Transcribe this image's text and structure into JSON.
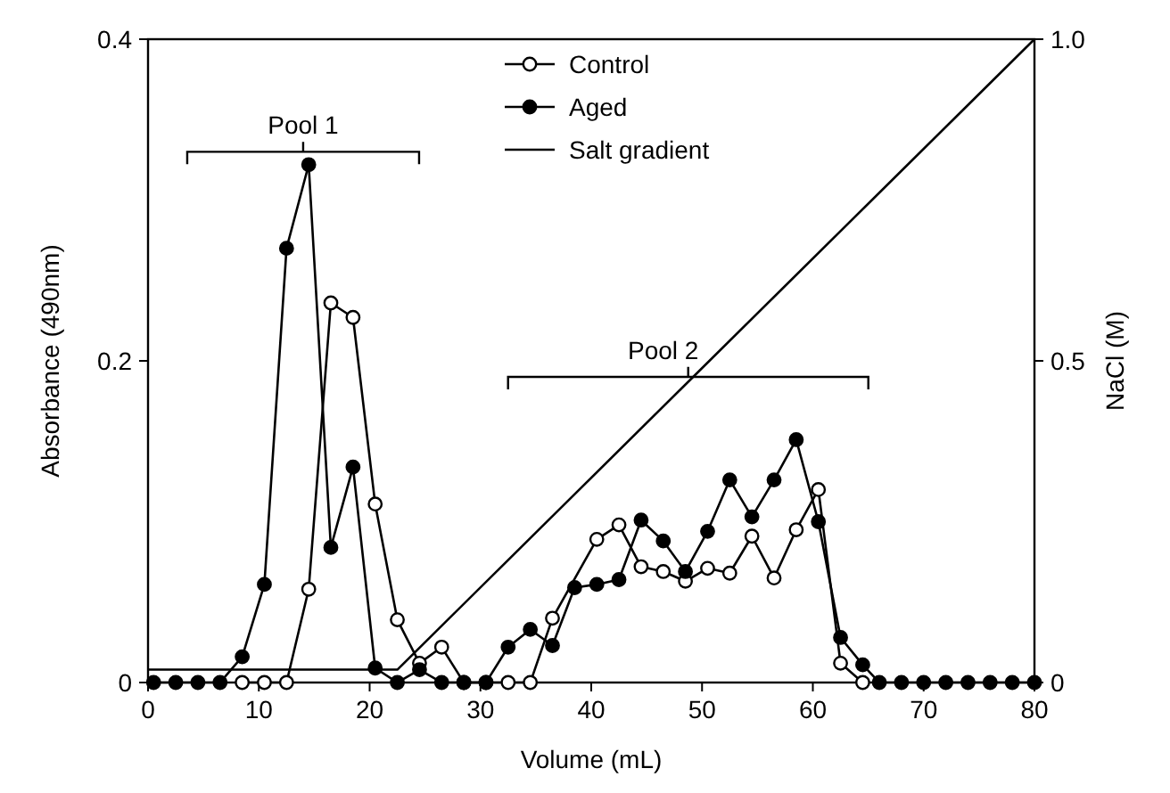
{
  "chart_data": {
    "type": "line",
    "xlabel": "Volume (mL)",
    "ylabel": "Absorbance (490nm)",
    "y2label": "NaCl (M)",
    "xlim": [
      0,
      80
    ],
    "xticks": [
      0,
      10,
      20,
      30,
      40,
      50,
      60,
      70,
      80
    ],
    "ylim": [
      0,
      0.4
    ],
    "yticks": [
      0,
      0.2,
      0.4
    ],
    "y2lim": [
      0,
      1.0
    ],
    "y2ticks": [
      0,
      0.5,
      {
        "value": 1.0,
        "label": "1.0"
      }
    ],
    "legend": "top",
    "marker": "circle",
    "series": [
      {
        "name": "Control",
        "color": "#ffffff",
        "x": [
          8.5,
          10.5,
          12.5,
          14.5,
          16.5,
          18.5,
          20.5,
          22.5,
          24.5,
          26.5,
          28.5,
          30.5,
          32.5,
          34.5,
          36.5,
          40.5,
          42.5,
          44.5,
          46.5,
          48.5,
          50.5,
          52.5,
          54.5,
          56.5,
          58.5,
          60.5,
          62.5,
          64.5
        ],
        "values": [
          0,
          0,
          0,
          0.058,
          0.236,
          0.227,
          0.111,
          0.039,
          0.012,
          0.022,
          0,
          0,
          0,
          0,
          0.04,
          0.089,
          0.098,
          0.072,
          0.069,
          0.063,
          0.071,
          0.068,
          0.091,
          0.065,
          0.095,
          0.12,
          0.012,
          0
        ]
      },
      {
        "name": "Aged",
        "color": "#000000",
        "x": [
          0.5,
          2.5,
          4.5,
          6.5,
          8.5,
          10.5,
          12.5,
          14.5,
          16.5,
          18.5,
          20.5,
          22.5,
          24.5,
          26.5,
          28.5,
          30.5,
          32.5,
          34.5,
          36.5,
          38.5,
          40.5,
          42.5,
          44.5,
          46.5,
          48.5,
          50.5,
          52.5,
          54.5,
          56.5,
          58.5,
          60.5,
          62.5,
          64.5,
          66,
          68,
          70,
          72,
          74,
          76,
          78,
          80
        ],
        "values": [
          0,
          0,
          0,
          0,
          0.016,
          0.061,
          0.27,
          0.322,
          0.084,
          0.134,
          0.009,
          0,
          0.008,
          0,
          0,
          0,
          0.022,
          0.033,
          0.023,
          0.059,
          0.061,
          0.064,
          0.101,
          0.088,
          0.069,
          0.094,
          0.126,
          0.103,
          0.126,
          0.151,
          0.1,
          0.028,
          0.011,
          0,
          0,
          0,
          0,
          0,
          0,
          0,
          0
        ]
      },
      {
        "name": "Salt gradient",
        "type": "line",
        "axis": "y2",
        "marker": "none",
        "color": "#000000",
        "x": [
          0,
          22.5,
          80
        ],
        "values": [
          0.02,
          0.02,
          1.0
        ]
      }
    ],
    "annotations": [
      {
        "text": "Pool 1",
        "x": 14,
        "y": 0.33
      },
      {
        "text": "Pool 2",
        "x": 48.75,
        "y": 0.19
      }
    ]
  }
}
